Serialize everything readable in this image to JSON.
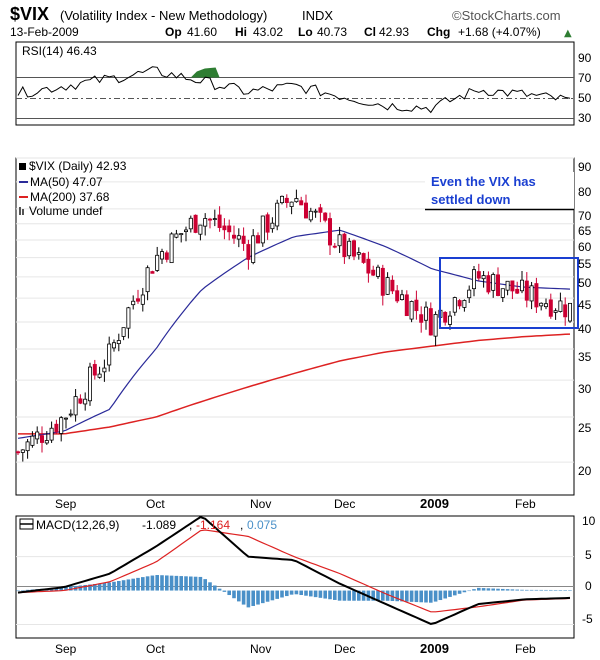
{
  "header": {
    "symbol": "$VIX",
    "name": "(Volatility Index - New Methodology)",
    "exchange": "INDX",
    "brand": "©StockCharts.com",
    "date": "13-Feb-2009",
    "open_label": "Op",
    "open": "41.60",
    "high_label": "Hi",
    "high": "43.02",
    "low_label": "Lo",
    "low": "40.73",
    "close_label": "Cl",
    "close": "42.93",
    "change_label": "Chg",
    "change": "+1.68 (+4.07%)",
    "change_glyph": "▲"
  },
  "colors": {
    "up": "#000000",
    "down": "#cc0033",
    "ma50": "#2a2a99",
    "ma200": "#dd2222",
    "rsi_fill": "#2e7d32",
    "annotation": "#1a3fd1",
    "macd_line": "#000000",
    "macd_signal": "#dd2222",
    "macd_hist": "#4a90c8"
  },
  "rsi_panel": {
    "legend": "RSI(14) 46.43",
    "yticks": [
      "90",
      "70",
      "50",
      "30"
    ]
  },
  "price_panel": {
    "legend_main": "$VIX (Daily) 42.93",
    "legend_ma50": "MA(50) 47.07",
    "legend_ma200": "MA(200) 37.68",
    "legend_volume": "Volume undef",
    "yticks": [
      "90",
      "80",
      "70",
      "65",
      "60",
      "55",
      "50",
      "45",
      "40",
      "35",
      "30",
      "25",
      "20"
    ],
    "annotation_line1": "Even the VIX has",
    "annotation_line2": "settled down"
  },
  "macd_panel": {
    "legend_name": "MACD(12,26,9)",
    "legend_macd": "-1.089",
    "legend_signal": "-1.164",
    "legend_hist": "0.075",
    "yticks": [
      "10",
      "5",
      "0",
      "-5"
    ]
  },
  "x_labels": [
    "Sep",
    "Oct",
    "Nov",
    "Dec",
    "2009",
    "Jan",
    "Feb"
  ],
  "chart_data": [
    {
      "type": "line",
      "panel": "rsi",
      "title": "RSI(14) 46.43",
      "ylim": [
        30,
        90
      ],
      "reference_lines": [
        30,
        50,
        70
      ],
      "x": [
        "Aug-29",
        "Sep-12",
        "Sep-26",
        "Oct-10",
        "Oct-24",
        "Nov-07",
        "Nov-21",
        "Dec-05",
        "Dec-19",
        "Jan-02",
        "Jan-16",
        "Jan-30",
        "Feb-13"
      ],
      "values": [
        52,
        58,
        64,
        70,
        62,
        53,
        58,
        50,
        42,
        40,
        55,
        51,
        46
      ]
    },
    {
      "type": "candlestick",
      "panel": "price",
      "title": "$VIX (Daily) 42.93",
      "scale": "log",
      "ylim": [
        17,
        90
      ],
      "x": [
        "Aug-29",
        "Sep-12",
        "Sep-26",
        "Oct-10",
        "Oct-24",
        "Nov-07",
        "Nov-21",
        "Dec-05",
        "Dec-19",
        "Jan-02",
        "Jan-16",
        "Jan-30",
        "Feb-13"
      ],
      "close": [
        21,
        25,
        34,
        55,
        68,
        58,
        75,
        58,
        48,
        40,
        50,
        46,
        42.93
      ],
      "series": [
        {
          "name": "MA(50)",
          "values": [
            22.5,
            23.3,
            26,
            35,
            47,
            55,
            61,
            63,
            58,
            52,
            49,
            47.5,
            47.07
          ]
        },
        {
          "name": "MA(200)",
          "values": [
            23,
            23,
            23.8,
            25,
            27,
            29,
            31,
            33,
            34.5,
            35.5,
            36.5,
            37.2,
            37.68
          ]
        }
      ],
      "annotations": [
        "Even the VIX has settled down"
      ]
    },
    {
      "type": "line",
      "panel": "macd",
      "title": "MACD(12,26,9) -1.089, -1.164, 0.075",
      "ylim": [
        -7,
        11
      ],
      "x": [
        "Aug-29",
        "Sep-12",
        "Sep-26",
        "Oct-10",
        "Oct-24",
        "Nov-07",
        "Nov-21",
        "Dec-05",
        "Dec-19",
        "Jan-02",
        "Jan-16",
        "Jan-30",
        "Feb-13"
      ],
      "series": [
        {
          "name": "MACD",
          "values": [
            -0.3,
            0.5,
            2.5,
            6.5,
            11,
            5,
            4.5,
            1,
            -2,
            -5,
            -2,
            -1.3,
            -1.089
          ]
        },
        {
          "name": "Signal",
          "values": [
            -0.3,
            0,
            1.3,
            4.2,
            9,
            8,
            5,
            2.5,
            -0.5,
            -3.2,
            -2.4,
            -1.4,
            -1.164
          ]
        },
        {
          "name": "Histogram",
          "values": [
            0,
            0.5,
            1.2,
            2.3,
            2,
            -2.5,
            -0.5,
            -1.5,
            -1.5,
            -1.8,
            0.4,
            0.1,
            0.075
          ]
        }
      ]
    }
  ]
}
